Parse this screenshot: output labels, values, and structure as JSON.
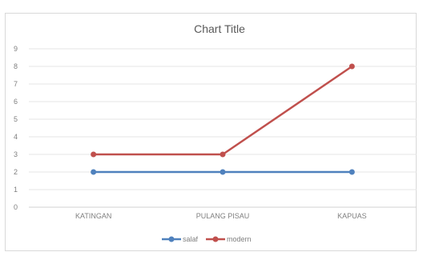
{
  "top_text": "",
  "chart_data": {
    "type": "line",
    "title": "Chart Title",
    "categories": [
      "KATINGAN",
      "PULANG PISAU",
      "KAPUAS"
    ],
    "series": [
      {
        "name": "salaf",
        "values": [
          2,
          2,
          2
        ],
        "color": "#4f81bd"
      },
      {
        "name": "modern",
        "values": [
          3,
          3,
          8
        ],
        "color": "#c0504d"
      }
    ],
    "ylim": [
      0,
      9
    ],
    "yticks": [
      0,
      1,
      2,
      3,
      4,
      5,
      6,
      7,
      8,
      9
    ],
    "grid": true,
    "legend_position": "bottom"
  }
}
